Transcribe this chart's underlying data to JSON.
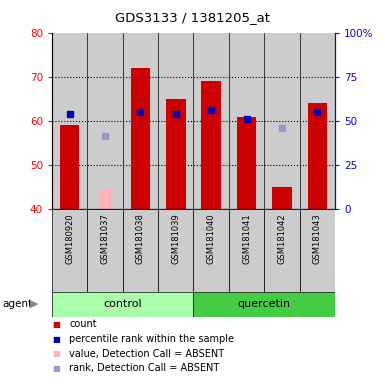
{
  "title": "GDS3133 / 1381205_at",
  "samples": [
    "GSM180920",
    "GSM181037",
    "GSM181038",
    "GSM181039",
    "GSM181040",
    "GSM181041",
    "GSM181042",
    "GSM181043"
  ],
  "red_bars": [
    59,
    null,
    72,
    65,
    69,
    61,
    45,
    64
  ],
  "pink_bars": [
    null,
    44.5,
    null,
    null,
    null,
    null,
    null,
    null
  ],
  "blue_dots": [
    61.5,
    null,
    62.0,
    61.5,
    62.5,
    60.5,
    null,
    62.0
  ],
  "lavender_dots": [
    null,
    56.5,
    null,
    null,
    null,
    null,
    58.5,
    null
  ],
  "ylim_left": [
    40,
    80
  ],
  "ylim_right": [
    0,
    100
  ],
  "yticks_left": [
    40,
    50,
    60,
    70,
    80
  ],
  "ytick_labels_right": [
    "0",
    "25",
    "50",
    "75",
    "100%"
  ],
  "bar_width": 0.55,
  "red_color": "#CC0000",
  "pink_color": "#FFB0B8",
  "blue_color": "#0000BB",
  "lavender_color": "#9999CC",
  "control_bg_light": "#AAFFAA",
  "control_bg_dark": "#44CC44",
  "sample_bg": "#CCCCCC",
  "group_label_control": "control",
  "group_label_quercetin": "quercetin",
  "legend_items": [
    "count",
    "percentile rank within the sample",
    "value, Detection Call = ABSENT",
    "rank, Detection Call = ABSENT"
  ],
  "legend_colors": [
    "#CC0000",
    "#0000BB",
    "#FFB0B8",
    "#9999CC"
  ]
}
